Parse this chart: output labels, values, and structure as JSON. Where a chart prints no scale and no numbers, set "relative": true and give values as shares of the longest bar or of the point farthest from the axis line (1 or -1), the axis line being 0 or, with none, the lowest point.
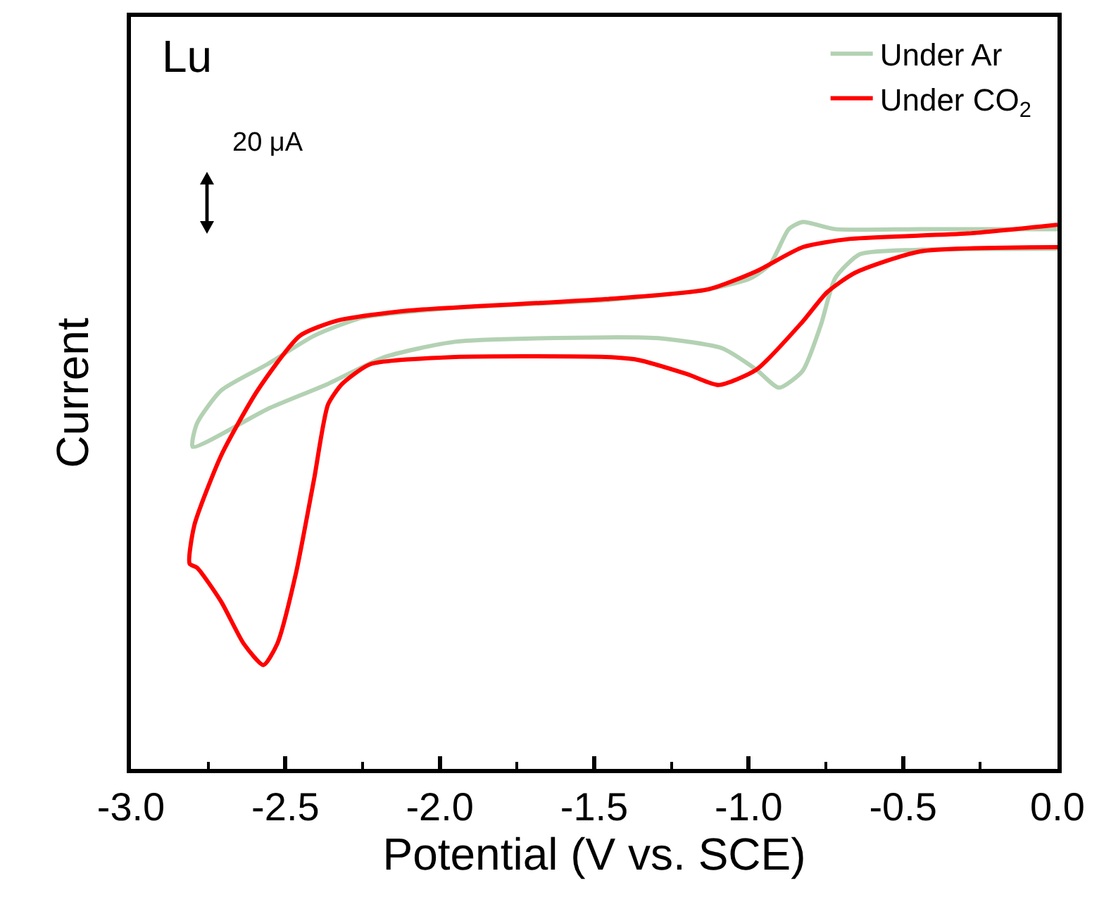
{
  "chart_data": {
    "type": "line",
    "relative": true,
    "xlabel": "Potential (V vs. SCE)",
    "ylabel": "Current",
    "xlim": [
      -3.0,
      0.0
    ],
    "xticks": [
      {
        "value": -3.0,
        "label": "-3.0"
      },
      {
        "value": -2.5,
        "label": "-2.5"
      },
      {
        "value": -2.0,
        "label": "-2.0"
      },
      {
        "value": -1.5,
        "label": "-1.5"
      },
      {
        "value": -1.0,
        "label": "-1.0"
      },
      {
        "value": -0.5,
        "label": "-0.5"
      },
      {
        "value": 0.0,
        "label": "0.0"
      }
    ],
    "legend": "top right",
    "annotations": [
      "Lu",
      "20 μA"
    ],
    "series": [
      {
        "name": "Under Ar",
        "color": "#b3d1b3",
        "x": [
          0.0,
          -0.46,
          -0.64,
          -0.72,
          -0.766,
          -0.825,
          -0.902,
          -0.975,
          -1.085,
          -1.28,
          -1.463,
          -1.951,
          -2.179,
          -2.362,
          -2.558,
          -2.8,
          -2.786,
          -2.708,
          -2.558,
          -2.407,
          -2.252,
          -1.951,
          -1.463,
          -1.13,
          -0.994,
          -0.93,
          -0.87,
          -0.825,
          -0.72,
          -0.446,
          0.0
        ],
        "values": [
          0.951,
          0.949,
          0.941,
          0.897,
          0.812,
          0.728,
          0.697,
          0.73,
          0.769,
          0.787,
          0.789,
          0.781,
          0.753,
          0.704,
          0.658,
          0.589,
          0.632,
          0.692,
          0.74,
          0.792,
          0.825,
          0.843,
          0.857,
          0.877,
          0.897,
          0.923,
          0.987,
          1.0,
          0.987,
          0.987,
          0.987
        ]
      },
      {
        "name": "Under CO$_{2}$",
        "color": "#ff0000",
        "x": [
          0.0,
          -0.446,
          -0.656,
          -0.747,
          -0.825,
          -0.975,
          -1.098,
          -1.2,
          -1.36,
          -1.463,
          -1.951,
          -2.225,
          -2.316,
          -2.362,
          -2.407,
          -2.466,
          -2.526,
          -2.571,
          -2.635,
          -2.708,
          -2.786,
          -2.81,
          -2.795,
          -2.708,
          -2.59,
          -2.453,
          -2.33,
          -2.1,
          -1.463,
          -1.13,
          -0.975,
          -0.825,
          -0.674,
          -0.291,
          0.0
        ],
        "values": [
          0.954,
          0.946,
          0.907,
          0.871,
          0.818,
          0.73,
          0.702,
          0.722,
          0.748,
          0.753,
          0.753,
          0.74,
          0.704,
          0.666,
          0.53,
          0.357,
          0.229,
          0.19,
          0.229,
          0.306,
          0.368,
          0.375,
          0.445,
          0.573,
          0.692,
          0.792,
          0.82,
          0.838,
          0.859,
          0.877,
          0.91,
          0.954,
          0.969,
          0.979,
          0.995
        ]
      }
    ]
  }
}
